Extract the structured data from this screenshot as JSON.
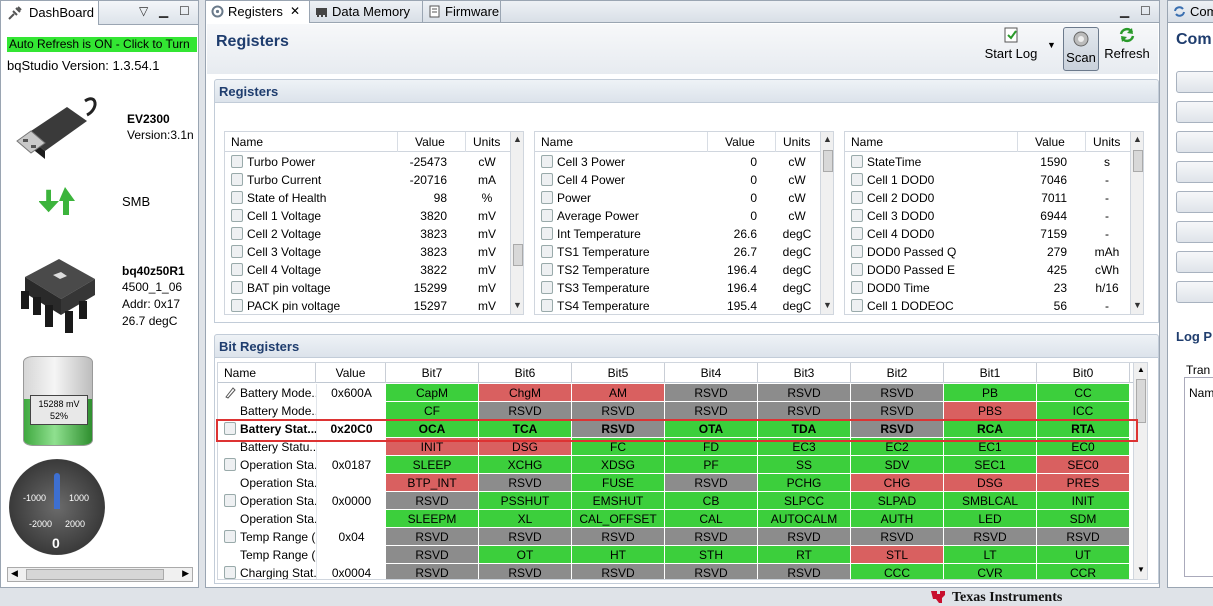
{
  "dashboard": {
    "tab_label": "DashBoard",
    "auto_refresh": "Auto Refresh is ON - Click to Turn",
    "version": "bqStudio Version:  1.3.54.1",
    "adapter": {
      "name": "EV2300",
      "version": "Version:3.1n"
    },
    "bus": "SMB",
    "device": {
      "name": "bq40z50R1",
      "fw": "4500_1_06",
      "addr": "Addr: 0x17",
      "temp": "26.7 degC"
    },
    "battery": {
      "voltage": "15288 mV",
      "percent": "52%",
      "level": 0.52
    },
    "gauge": {
      "labels": [
        "-1000",
        "1000",
        "-2000",
        "2000"
      ],
      "value": "0"
    }
  },
  "editor": {
    "tabs": [
      {
        "label": "Registers"
      },
      {
        "label": "Data Memory"
      },
      {
        "label": "Firmware"
      }
    ],
    "title": "Registers",
    "toolbar": {
      "start_log": "Start Log",
      "scan": "Scan",
      "refresh": "Refresh"
    }
  },
  "registers": {
    "section_title": "Registers",
    "headers": {
      "name": "Name",
      "value": "Value",
      "units": "Units"
    },
    "tables": [
      {
        "rows": [
          {
            "name": "Turbo Power",
            "value": "-25473",
            "units": "cW"
          },
          {
            "name": "Turbo Current",
            "value": "-20716",
            "units": "mA"
          },
          {
            "name": "State of Health",
            "value": "98",
            "units": "%"
          },
          {
            "name": "Cell 1 Voltage",
            "value": "3820",
            "units": "mV"
          },
          {
            "name": "Cell 2 Voltage",
            "value": "3823",
            "units": "mV"
          },
          {
            "name": "Cell 3 Voltage",
            "value": "3823",
            "units": "mV"
          },
          {
            "name": "Cell 4 Voltage",
            "value": "3822",
            "units": "mV"
          },
          {
            "name": "BAT pin voltage",
            "value": "15299",
            "units": "mV"
          },
          {
            "name": "PACK pin voltage",
            "value": "15297",
            "units": "mV"
          }
        ]
      },
      {
        "rows": [
          {
            "name": "Cell 3 Power",
            "value": "0",
            "units": "cW"
          },
          {
            "name": "Cell 4 Power",
            "value": "0",
            "units": "cW"
          },
          {
            "name": "Power",
            "value": "0",
            "units": "cW"
          },
          {
            "name": "Average Power",
            "value": "0",
            "units": "cW"
          },
          {
            "name": "Int Temperature",
            "value": "26.6",
            "units": "degC"
          },
          {
            "name": "TS1 Temperature",
            "value": "26.7",
            "units": "degC"
          },
          {
            "name": "TS2 Temperature",
            "value": "196.4",
            "units": "degC"
          },
          {
            "name": "TS3 Temperature",
            "value": "196.4",
            "units": "degC"
          },
          {
            "name": "TS4 Temperature",
            "value": "195.4",
            "units": "degC"
          }
        ]
      },
      {
        "rows": [
          {
            "name": "StateTime",
            "value": "1590",
            "units": "s"
          },
          {
            "name": "Cell 1 DOD0",
            "value": "7046",
            "units": "-"
          },
          {
            "name": "Cell 2 DOD0",
            "value": "7011",
            "units": "-"
          },
          {
            "name": "Cell 3 DOD0",
            "value": "6944",
            "units": "-"
          },
          {
            "name": "Cell 4 DOD0",
            "value": "7159",
            "units": "-"
          },
          {
            "name": "DOD0 Passed Q",
            "value": "279",
            "units": "mAh"
          },
          {
            "name": "DOD0 Passed E",
            "value": "425",
            "units": "cWh"
          },
          {
            "name": "DOD0 Time",
            "value": "23",
            "units": "h/16"
          },
          {
            "name": "Cell 1 DODEOC",
            "value": "56",
            "units": "-"
          }
        ]
      }
    ]
  },
  "bit_registers": {
    "section_title": "Bit Registers",
    "headers": [
      "Name",
      "Value",
      "Bit7",
      "Bit6",
      "Bit5",
      "Bit4",
      "Bit3",
      "Bit2",
      "Bit1",
      "Bit0"
    ],
    "rows": [
      {
        "name": "Battery Mode...",
        "value": "0x600A",
        "icon": "edit",
        "bits": [
          [
            "CapM",
            "g"
          ],
          [
            "ChgM",
            "r"
          ],
          [
            "AM",
            "r"
          ],
          [
            "RSVD",
            "y"
          ],
          [
            "RSVD",
            "y"
          ],
          [
            "RSVD",
            "y"
          ],
          [
            "PB",
            "g"
          ],
          [
            "CC",
            "g"
          ]
        ]
      },
      {
        "name": "Battery Mode...",
        "value": "",
        "icon": "",
        "bits": [
          [
            "CF",
            "g"
          ],
          [
            "RSVD",
            "y"
          ],
          [
            "RSVD",
            "y"
          ],
          [
            "RSVD",
            "y"
          ],
          [
            "RSVD",
            "y"
          ],
          [
            "RSVD",
            "y"
          ],
          [
            "PBS",
            "r"
          ],
          [
            "ICC",
            "g"
          ]
        ]
      },
      {
        "name": "Battery Stat...",
        "value": "0x20C0",
        "icon": "lock",
        "bold": true,
        "bits": [
          [
            "OCA",
            "g"
          ],
          [
            "TCA",
            "g"
          ],
          [
            "RSVD",
            "y"
          ],
          [
            "OTA",
            "g"
          ],
          [
            "TDA",
            "g"
          ],
          [
            "RSVD",
            "y"
          ],
          [
            "RCA",
            "g"
          ],
          [
            "RTA",
            "g"
          ]
        ]
      },
      {
        "name": "Battery Statu...",
        "value": "",
        "icon": "",
        "bits": [
          [
            "INIT",
            "r"
          ],
          [
            "DSG",
            "r"
          ],
          [
            "FC",
            "g"
          ],
          [
            "FD",
            "g"
          ],
          [
            "EC3",
            "g"
          ],
          [
            "EC2",
            "g"
          ],
          [
            "EC1",
            "g"
          ],
          [
            "EC0",
            "g"
          ]
        ]
      },
      {
        "name": "Operation Sta...",
        "value": "0x0187",
        "icon": "lock",
        "bits": [
          [
            "SLEEP",
            "g"
          ],
          [
            "XCHG",
            "g"
          ],
          [
            "XDSG",
            "g"
          ],
          [
            "PF",
            "g"
          ],
          [
            "SS",
            "g"
          ],
          [
            "SDV",
            "g"
          ],
          [
            "SEC1",
            "g"
          ],
          [
            "SEC0",
            "r"
          ]
        ]
      },
      {
        "name": "Operation Sta...",
        "value": "",
        "icon": "",
        "bits": [
          [
            "BTP_INT",
            "r"
          ],
          [
            "RSVD",
            "y"
          ],
          [
            "FUSE",
            "g"
          ],
          [
            "RSVD",
            "y"
          ],
          [
            "PCHG",
            "g"
          ],
          [
            "CHG",
            "r"
          ],
          [
            "DSG",
            "r"
          ],
          [
            "PRES",
            "r"
          ]
        ]
      },
      {
        "name": "Operation Sta...",
        "value": "0x0000",
        "icon": "lock",
        "bits": [
          [
            "RSVD",
            "y"
          ],
          [
            "PSSHUT",
            "g"
          ],
          [
            "EMSHUT",
            "g"
          ],
          [
            "CB",
            "g"
          ],
          [
            "SLPCC",
            "g"
          ],
          [
            "SLPAD",
            "g"
          ],
          [
            "SMBLCAL",
            "g"
          ],
          [
            "INIT",
            "g"
          ]
        ]
      },
      {
        "name": "Operation Sta...",
        "value": "",
        "icon": "",
        "bits": [
          [
            "SLEEPM",
            "g"
          ],
          [
            "XL",
            "g"
          ],
          [
            "CAL_OFFSET",
            "g"
          ],
          [
            "CAL",
            "g"
          ],
          [
            "AUTOCALM",
            "g"
          ],
          [
            "AUTH",
            "g"
          ],
          [
            "LED",
            "g"
          ],
          [
            "SDM",
            "g"
          ]
        ]
      },
      {
        "name": "Temp Range (...",
        "value": "0x04",
        "icon": "lock",
        "bits": [
          [
            "RSVD",
            "y"
          ],
          [
            "RSVD",
            "y"
          ],
          [
            "RSVD",
            "y"
          ],
          [
            "RSVD",
            "y"
          ],
          [
            "RSVD",
            "y"
          ],
          [
            "RSVD",
            "y"
          ],
          [
            "RSVD",
            "y"
          ],
          [
            "RSVD",
            "y"
          ]
        ]
      },
      {
        "name": "Temp Range (...",
        "value": "",
        "icon": "",
        "bits": [
          [
            "RSVD",
            "y"
          ],
          [
            "OT",
            "g"
          ],
          [
            "HT",
            "g"
          ],
          [
            "STH",
            "g"
          ],
          [
            "RT",
            "g"
          ],
          [
            "STL",
            "r"
          ],
          [
            "LT",
            "g"
          ],
          [
            "UT",
            "g"
          ]
        ]
      },
      {
        "name": "Charging Stat...",
        "value": "0x0004",
        "icon": "lock",
        "bits": [
          [
            "RSVD",
            "y"
          ],
          [
            "RSVD",
            "y"
          ],
          [
            "RSVD",
            "y"
          ],
          [
            "RSVD",
            "y"
          ],
          [
            "RSVD",
            "y"
          ],
          [
            "CCC",
            "g"
          ],
          [
            "CVR",
            "g"
          ],
          [
            "CCR",
            "g"
          ]
        ]
      }
    ]
  },
  "right_panel": {
    "tab_label": "Com",
    "title": "Com",
    "log_title": "Log P",
    "transaction_label": "Tran",
    "name_col": "Nam"
  },
  "footer": {
    "brand": "Texas Instruments"
  },
  "colors": {
    "green": "#3ccf3c",
    "red": "#d96060",
    "gray": "#8c8c8c",
    "accent": "#1f3d6e"
  }
}
